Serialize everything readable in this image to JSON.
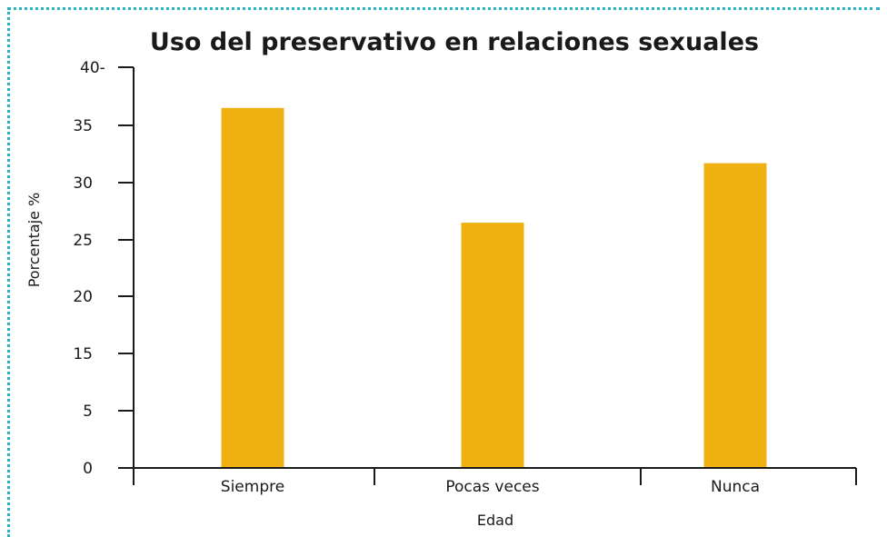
{
  "colors": {
    "bar": "#eeb111",
    "frame": "#27b3c2",
    "axis": "#1a1a1a"
  },
  "chart_data": {
    "type": "bar",
    "title": "Uso del preservativo en relaciones sexuales",
    "xlabel": "Edad",
    "ylabel": "Porcentaje %",
    "categories": [
      "Siempre",
      "Pocas veces",
      "Nunca"
    ],
    "values": [
      36.5,
      26.5,
      31.7
    ],
    "y_ticks": [
      "0",
      "5",
      "15",
      "20",
      "25",
      "30",
      "35",
      "40-"
    ],
    "ylim": [
      0,
      40
    ],
    "grid": false,
    "legend": "none"
  }
}
